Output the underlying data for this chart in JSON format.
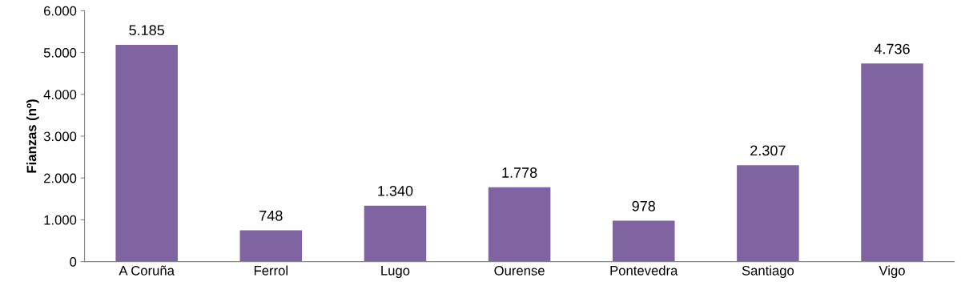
{
  "chart_data": {
    "type": "bar",
    "ylabel": "Fianzas (nº)",
    "categories": [
      "A Coruña",
      "Ferrol",
      "Lugo",
      "Ourense",
      "Pontevedra",
      "Santiago",
      "Vigo"
    ],
    "values": [
      5185,
      748,
      1340,
      1778,
      978,
      2307,
      4736
    ],
    "value_labels": [
      "5.185",
      "748",
      "1.340",
      "1.778",
      "978",
      "2.307",
      "4.736"
    ],
    "color": "#8064a2",
    "ylim": [
      0,
      6000
    ],
    "yticks": [
      {
        "value": 0,
        "label": "0"
      },
      {
        "value": 1000,
        "label": "1.000"
      },
      {
        "value": 2000,
        "label": "2.000"
      },
      {
        "value": 3000,
        "label": "3.000"
      },
      {
        "value": 4000,
        "label": "4.000"
      },
      {
        "value": 5000,
        "label": "5.000"
      },
      {
        "value": 6000,
        "label": "6.000"
      }
    ],
    "grid": false,
    "legend": false
  }
}
